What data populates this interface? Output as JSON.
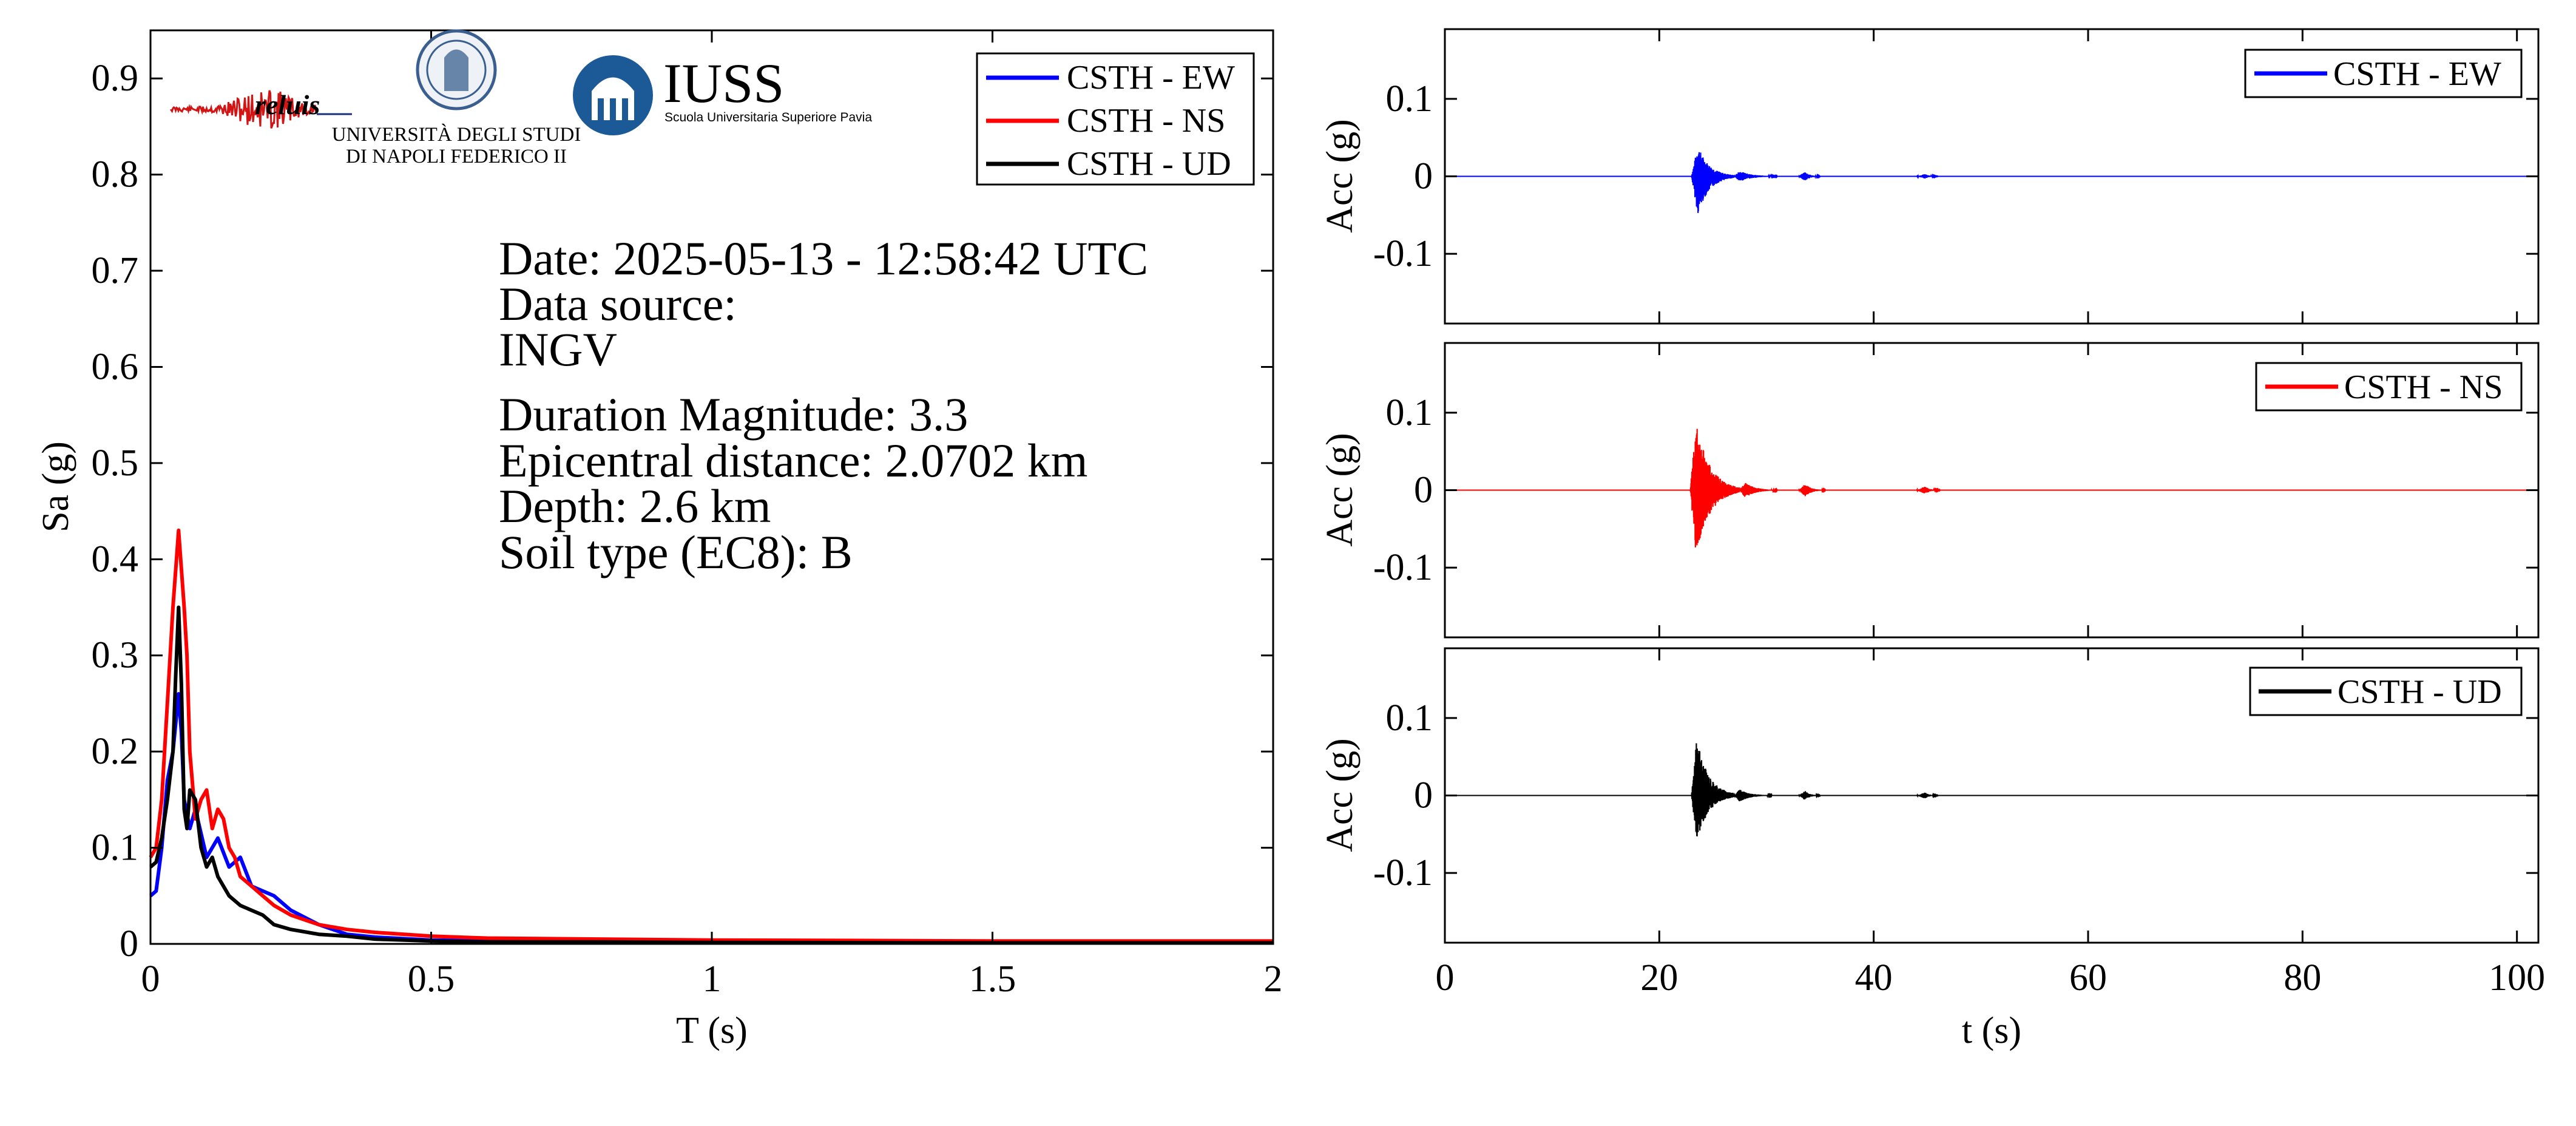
{
  "chart_data": [
    {
      "type": "line",
      "xlabel": "T (s)",
      "ylabel": "Sa (g)",
      "xlim": [
        0,
        2
      ],
      "ylim": [
        0,
        0.95
      ],
      "xticks": [
        0,
        0.5,
        1,
        1.5,
        2
      ],
      "xtick_labels": [
        "0",
        "0.5",
        "1",
        "1.5",
        "2"
      ],
      "yticks": [
        0,
        0.1,
        0.2,
        0.3,
        0.4,
        0.5,
        0.6,
        0.7,
        0.8,
        0.9
      ],
      "ytick_labels": [
        "0",
        "0.1",
        "0.2",
        "0.3",
        "0.4",
        "0.5",
        "0.6",
        "0.7",
        "0.8",
        "0.9"
      ],
      "grid": false,
      "legend_position": "top-right",
      "series": [
        {
          "name": "CSTH - EW",
          "color": "#0000ff",
          "x": [
            0,
            0.01,
            0.02,
            0.03,
            0.04,
            0.05,
            0.055,
            0.06,
            0.07,
            0.08,
            0.1,
            0.12,
            0.14,
            0.16,
            0.18,
            0.2,
            0.22,
            0.25,
            0.3,
            0.35,
            0.4,
            0.5,
            0.6,
            0.8,
            1.0,
            1.5,
            2.0
          ],
          "y": [
            0.05,
            0.055,
            0.1,
            0.17,
            0.2,
            0.26,
            0.22,
            0.15,
            0.12,
            0.14,
            0.09,
            0.11,
            0.08,
            0.09,
            0.06,
            0.055,
            0.05,
            0.035,
            0.02,
            0.01,
            0.007,
            0.004,
            0.003,
            0.002,
            0.0015,
            0.001,
            0.001
          ]
        },
        {
          "name": "CSTH - NS",
          "color": "#ff0000",
          "x": [
            0,
            0.01,
            0.02,
            0.03,
            0.04,
            0.05,
            0.055,
            0.06,
            0.065,
            0.07,
            0.08,
            0.09,
            0.1,
            0.11,
            0.12,
            0.13,
            0.14,
            0.15,
            0.16,
            0.18,
            0.2,
            0.22,
            0.25,
            0.3,
            0.35,
            0.4,
            0.5,
            0.6,
            0.8,
            1.0,
            1.5,
            2.0
          ],
          "y": [
            0.09,
            0.1,
            0.15,
            0.25,
            0.35,
            0.43,
            0.39,
            0.35,
            0.3,
            0.2,
            0.13,
            0.15,
            0.16,
            0.12,
            0.14,
            0.13,
            0.1,
            0.09,
            0.07,
            0.06,
            0.05,
            0.04,
            0.03,
            0.02,
            0.015,
            0.012,
            0.008,
            0.006,
            0.005,
            0.004,
            0.003,
            0.003
          ]
        },
        {
          "name": "CSTH - UD",
          "color": "#000000",
          "x": [
            0,
            0.01,
            0.02,
            0.03,
            0.04,
            0.045,
            0.05,
            0.055,
            0.06,
            0.065,
            0.07,
            0.08,
            0.09,
            0.1,
            0.11,
            0.12,
            0.14,
            0.16,
            0.18,
            0.2,
            0.22,
            0.25,
            0.3,
            0.35,
            0.4,
            0.5,
            0.6,
            0.8,
            1.0,
            1.5,
            2.0
          ],
          "y": [
            0.08,
            0.085,
            0.11,
            0.15,
            0.2,
            0.28,
            0.35,
            0.27,
            0.14,
            0.12,
            0.16,
            0.15,
            0.1,
            0.08,
            0.09,
            0.07,
            0.05,
            0.04,
            0.035,
            0.03,
            0.02,
            0.015,
            0.01,
            0.008,
            0.005,
            0.003,
            0.002,
            0.002,
            0.0015,
            0.001,
            0.001
          ]
        }
      ]
    },
    {
      "type": "line",
      "xlabel": "",
      "ylabel": "Acc (g)",
      "xlim": [
        0,
        102
      ],
      "ylim": [
        -0.19,
        0.19
      ],
      "yticks": [
        -0.1,
        0,
        0.1
      ],
      "ytick_labels": [
        "-0.1",
        "0",
        "0.1"
      ],
      "grid": false,
      "legend_position": "top-right",
      "series": [
        {
          "name": "CSTH - EW",
          "color": "#0000ff",
          "bursts": [
            {
              "start": 23.0,
              "peak": 23.6,
              "end": 27.0,
              "amp_pos": 0.04,
              "amp_neg": -0.05
            },
            {
              "start": 27.0,
              "peak": 27.5,
              "end": 31.0,
              "amp_pos": 0.007,
              "amp_neg": -0.007
            },
            {
              "start": 33.0,
              "peak": 33.6,
              "end": 35.0,
              "amp_pos": 0.006,
              "amp_neg": -0.006
            },
            {
              "start": 44.0,
              "peak": 44.8,
              "end": 46.0,
              "amp_pos": 0.003,
              "amp_neg": -0.003
            }
          ]
        }
      ]
    },
    {
      "type": "line",
      "xlabel": "",
      "ylabel": "Acc (g)",
      "xlim": [
        0,
        102
      ],
      "ylim": [
        -0.19,
        0.19
      ],
      "yticks": [
        -0.1,
        0,
        0.1
      ],
      "ytick_labels": [
        "-0.1",
        "0",
        "0.1"
      ],
      "grid": false,
      "legend_position": "top-right",
      "series": [
        {
          "name": "CSTH - NS",
          "color": "#ff0000",
          "bursts": [
            {
              "start": 22.9,
              "peak": 23.4,
              "end": 27.5,
              "amp_pos": 0.09,
              "amp_neg": -0.085
            },
            {
              "start": 27.5,
              "peak": 28.0,
              "end": 31.0,
              "amp_pos": 0.01,
              "amp_neg": -0.01
            },
            {
              "start": 33.0,
              "peak": 33.6,
              "end": 35.5,
              "amp_pos": 0.008,
              "amp_neg": -0.008
            },
            {
              "start": 44.0,
              "peak": 44.8,
              "end": 46.2,
              "amp_pos": 0.005,
              "amp_neg": -0.005
            }
          ]
        }
      ]
    },
    {
      "type": "line",
      "xlabel": "t (s)",
      "ylabel": "Acc (g)",
      "xlim": [
        0,
        102
      ],
      "ylim": [
        -0.19,
        0.19
      ],
      "xticks": [
        0,
        20,
        40,
        60,
        80,
        100
      ],
      "xtick_labels": [
        "0",
        "20",
        "40",
        "60",
        "80",
        "100"
      ],
      "yticks": [
        -0.1,
        0,
        0.1
      ],
      "ytick_labels": [
        "-0.1",
        "0",
        "0.1"
      ],
      "grid": false,
      "legend_position": "top-right",
      "series": [
        {
          "name": "CSTH - UD",
          "color": "#000000",
          "bursts": [
            {
              "start": 23.0,
              "peak": 23.5,
              "end": 27.0,
              "amp_pos": 0.075,
              "amp_neg": -0.06
            },
            {
              "start": 27.0,
              "peak": 27.5,
              "end": 30.5,
              "amp_pos": 0.008,
              "amp_neg": -0.008
            },
            {
              "start": 33.0,
              "peak": 33.6,
              "end": 35.0,
              "amp_pos": 0.006,
              "amp_neg": -0.006
            },
            {
              "start": 44.0,
              "peak": 44.8,
              "end": 46.0,
              "amp_pos": 0.004,
              "amp_neg": -0.004
            }
          ]
        }
      ]
    }
  ],
  "info": {
    "date": "Date: 2025-05-13 - 12:58:42 UTC",
    "source_label": "Data source:",
    "source_value": "INGV",
    "magnitude": "Duration Magnitude: 3.3",
    "distance": "Epicentral distance: 2.0702 km",
    "depth": "Depth: 2.6 km",
    "soil": "Soil type (EC8): B"
  },
  "logos": {
    "reluis": "reluis",
    "unina_line1": "UNIVERSITÀ DEGLI STUDI",
    "unina_line2": "DI NAPOLI FEDERICO II",
    "iuss": "IUSS",
    "iuss_sub": "Scuola Universitaria Superiore Pavia"
  }
}
